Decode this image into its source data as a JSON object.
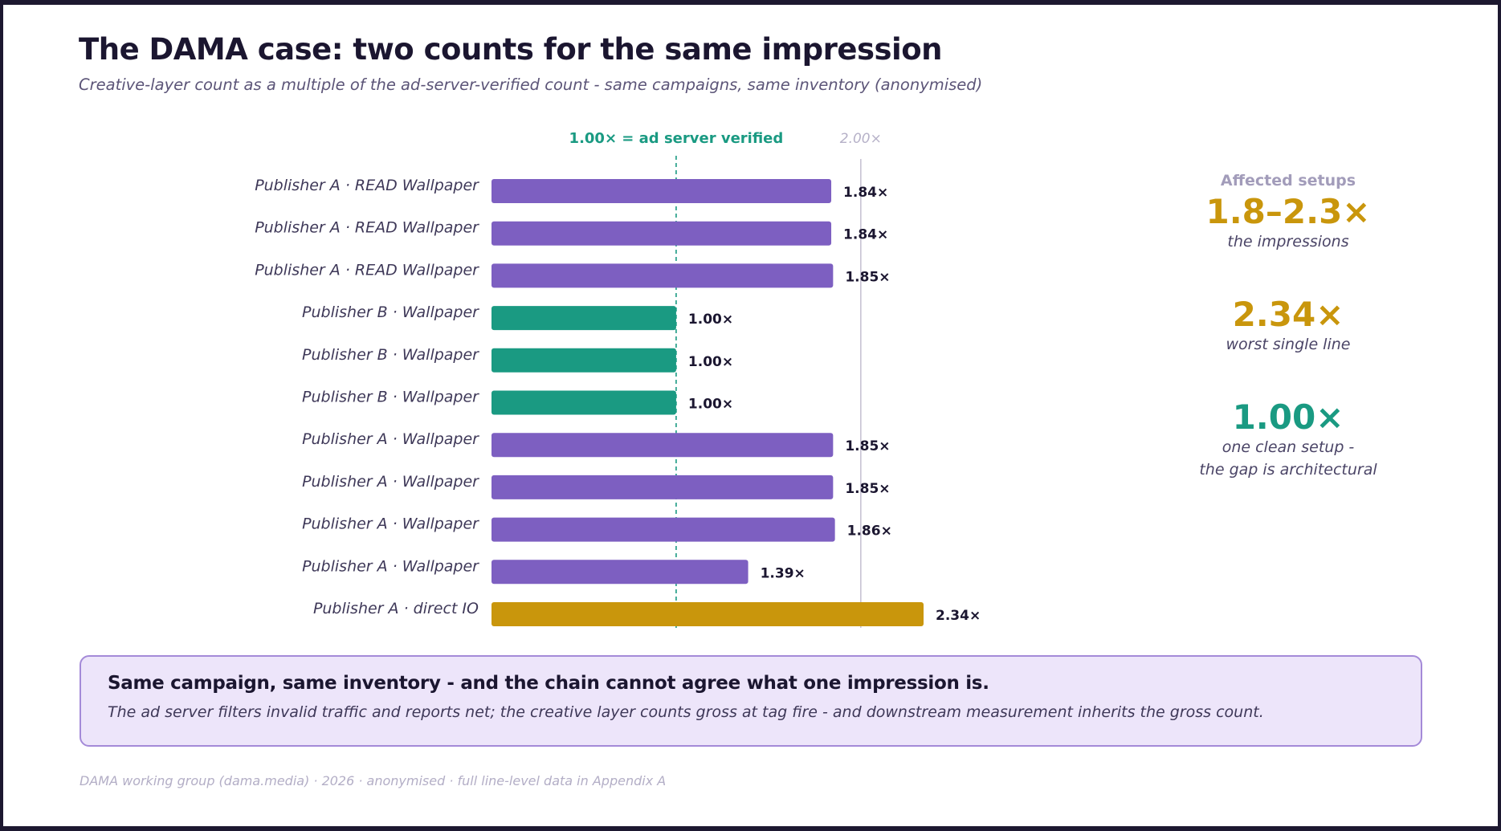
{
  "title": "The DAMA case: two counts for the same impression",
  "subtitle": "Creative-layer count as a multiple of the ad-server-verified count - same campaigns, same inventory (anonymised)",
  "colors": {
    "purple": "#7d5fc1",
    "teal": "#1a9a82",
    "gold": "#c9960c"
  },
  "chart_data": {
    "type": "bar",
    "orientation": "horizontal",
    "categories": [
      "Publisher A · READ Wallpaper",
      "Publisher A · READ Wallpaper",
      "Publisher A · READ Wallpaper",
      "Publisher B · Wallpaper",
      "Publisher B · Wallpaper",
      "Publisher B · Wallpaper",
      "Publisher A · Wallpaper",
      "Publisher A · Wallpaper",
      "Publisher A · Wallpaper",
      "Publisher A · Wallpaper",
      "Publisher A · direct IO"
    ],
    "values": [
      1.84,
      1.84,
      1.85,
      1.0,
      1.0,
      1.0,
      1.85,
      1.85,
      1.86,
      1.39,
      2.34
    ],
    "value_labels": [
      "1.84×",
      "1.84×",
      "1.85×",
      "1.00×",
      "1.00×",
      "1.00×",
      "1.85×",
      "1.85×",
      "1.86×",
      "1.39×",
      "2.34×"
    ],
    "bar_colors": [
      "#7d5fc1",
      "#7d5fc1",
      "#7d5fc1",
      "#1a9a82",
      "#1a9a82",
      "#1a9a82",
      "#7d5fc1",
      "#7d5fc1",
      "#7d5fc1",
      "#7d5fc1",
      "#c9960c"
    ],
    "xlim": [
      0,
      2.34
    ],
    "reference_lines": [
      {
        "value": 1.0,
        "label": "1.00× = ad server verified",
        "style": "dashed",
        "color": "#1a9a82"
      },
      {
        "value": 2.0,
        "label": "2.00×",
        "style": "solid",
        "color": "#c7c3d3"
      }
    ],
    "grid": false,
    "legend": "none"
  },
  "stats": {
    "heading": "Affected setups",
    "items": [
      {
        "value": "1.8–2.3×",
        "caption_lines": [
          "the impressions"
        ],
        "color": "#c9960c"
      },
      {
        "value": "2.34×",
        "caption_lines": [
          "worst single line"
        ],
        "color": "#c9960c"
      },
      {
        "value": "1.00×",
        "caption_lines": [
          "one clean setup -",
          "the gap is architectural"
        ],
        "color": "#1a9a82"
      }
    ]
  },
  "callout": {
    "title": "Same campaign, same inventory - and the chain cannot agree what one impression is.",
    "body": "The ad server filters invalid traffic and reports net; the creative layer counts gross at tag fire - and downstream measurement inherits the gross count."
  },
  "footer": "DAMA working group (dama.media) · 2026 · anonymised · full line-level data in Appendix A"
}
